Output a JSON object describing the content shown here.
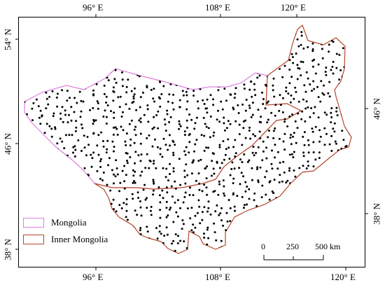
{
  "axes": {
    "top_ticks": [
      "96° E",
      "108° E",
      "120° E"
    ],
    "bottom_ticks": [
      "96° E",
      "108° E",
      "120° E"
    ],
    "left_ticks": [
      "54° N",
      "46° N",
      "38° N"
    ],
    "right_ticks": [
      "46° N",
      "38° N"
    ]
  },
  "legend": [
    {
      "label": "Mongolia",
      "color": "#e07ee0"
    },
    {
      "label": "Inner Mongolia",
      "color": "#b5472b"
    }
  ],
  "scale_bar": {
    "labels": [
      "0",
      "250",
      "500 km"
    ]
  },
  "colors": {
    "mongolia_border": "#e07ee0",
    "inner_mongolia_border": "#b5472b",
    "points": "#000000"
  }
}
